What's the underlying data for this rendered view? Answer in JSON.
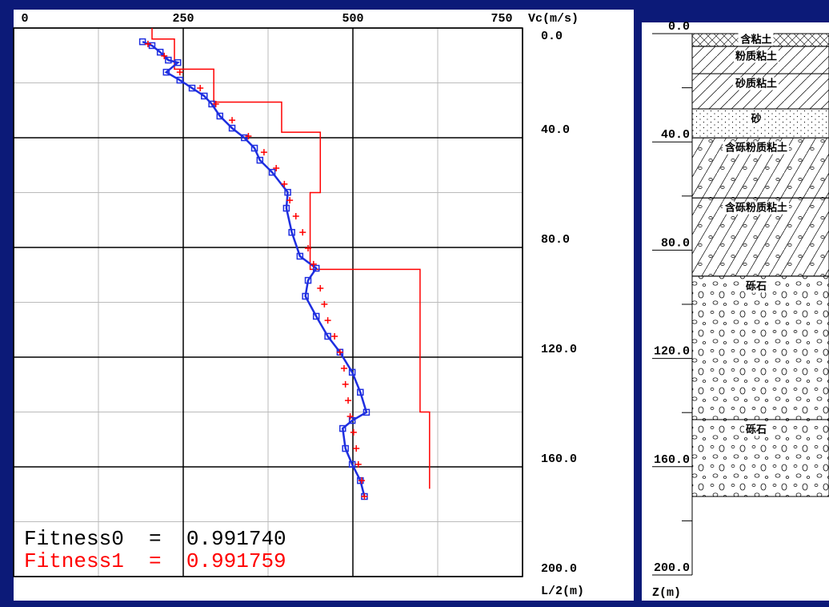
{
  "chart_data": [
    {
      "type": "line",
      "xlabel": "Vc(m/s)",
      "ylabel": "L/2(m)",
      "xlim": [
        0,
        750
      ],
      "xticks": [
        0,
        250,
        500,
        750
      ],
      "xminorticks": [
        125,
        375,
        625
      ],
      "ylim": [
        0,
        200
      ],
      "yticks": [
        {
          "value": 0,
          "label": "0.0"
        },
        {
          "value": 40,
          "label": "40.0"
        },
        {
          "value": 80,
          "label": "80.0"
        },
        {
          "value": 120,
          "label": "120.0"
        },
        {
          "value": 160,
          "label": "160.0"
        },
        {
          "value": 200,
          "label": "200.0"
        }
      ],
      "yminorticks": [
        20,
        60,
        100,
        140,
        180
      ],
      "y_inverted": true,
      "grid": true,
      "series": [
        {
          "color": "#ff0000",
          "style": "line",
          "x": [
            204,
            204,
            237,
            237,
            295,
            295,
            395,
            395,
            452,
            452,
            437,
            437,
            599,
            599,
            613,
            613
          ],
          "y": [
            0,
            4,
            4,
            15,
            15,
            27,
            27,
            38,
            38,
            60,
            60,
            88,
            88,
            140,
            140,
            168
          ]
        },
        {
          "color": "#1e2ee0",
          "style": "line-square",
          "x": [
            190,
            204,
            216,
            228,
            242,
            225,
            245,
            263,
            281,
            292,
            304,
            322,
            340,
            355,
            363,
            381,
            404,
            402,
            410,
            422,
            446,
            434,
            430,
            446,
            463,
            481,
            499,
            511,
            520,
            499,
            485,
            489,
            499,
            511,
            517
          ],
          "y": [
            5.0,
            6.4,
            8.8,
            11.7,
            12.6,
            16.1,
            19.0,
            21.9,
            24.8,
            27.7,
            32.1,
            36.5,
            40.0,
            43.8,
            48.2,
            52.6,
            59.9,
            65.7,
            74.5,
            83.2,
            87.6,
            92.0,
            97.8,
            105.1,
            112.4,
            118.2,
            125.5,
            132.8,
            140.1,
            143.1,
            146.0,
            153.3,
            159.1,
            165.0,
            170.8
          ]
        },
        {
          "color": "#ff0000",
          "style": "plus",
          "x": [
            198,
            222,
            245,
            275,
            298,
            322,
            346,
            369,
            387,
            399,
            407,
            416,
            426,
            434,
            442,
            452,
            458,
            463,
            473,
            481,
            487,
            489,
            493,
            496,
            501,
            505,
            508,
            513,
            517
          ],
          "y": [
            5.8,
            10.2,
            16.1,
            21.9,
            27.7,
            33.6,
            39.4,
            45.3,
            51.1,
            56.9,
            62.8,
            68.6,
            74.5,
            80.3,
            86.1,
            94.9,
            100.7,
            106.6,
            112.4,
            118.2,
            124.1,
            129.9,
            135.8,
            141.6,
            147.4,
            153.3,
            159.1,
            165.0,
            170.8
          ]
        }
      ],
      "annotations": [
        {
          "text": "Fitness0  =  0.991740",
          "color": "#000000"
        },
        {
          "text": "Fitness1  =  0.991759",
          "color": "#ff0000"
        }
      ]
    },
    {
      "type": "strata",
      "ylabel": "Z(m)",
      "ylim": [
        0,
        200
      ],
      "yticks": [
        {
          "value": 0,
          "label": "0.0"
        },
        {
          "value": 40,
          "label": "40.0"
        },
        {
          "value": 80,
          "label": "80.0"
        },
        {
          "value": 120,
          "label": "120.0"
        },
        {
          "value": 160,
          "label": "160.0"
        },
        {
          "value": 200,
          "label": "200.0"
        }
      ],
      "yminorticks": [
        20,
        60,
        100,
        140,
        180
      ],
      "layers": [
        {
          "name": "含粘土",
          "top": 0,
          "bottom": 4.7
        },
        {
          "name": "粉质粘土",
          "top": 4.7,
          "bottom": 14.8
        },
        {
          "name": "砂质粘土",
          "top": 14.8,
          "bottom": 27.8
        },
        {
          "name": "砂",
          "top": 27.8,
          "bottom": 38.5
        },
        {
          "name": "含砾粉质粘土",
          "top": 38.5,
          "bottom": 60.7
        },
        {
          "name": "含砾粉质粘土",
          "top": 60.7,
          "bottom": 89.6
        },
        {
          "name": "砾石",
          "top": 89.6,
          "bottom": 142.6
        },
        {
          "name": "砾石",
          "top": 142.6,
          "bottom": 171.0
        }
      ]
    }
  ]
}
